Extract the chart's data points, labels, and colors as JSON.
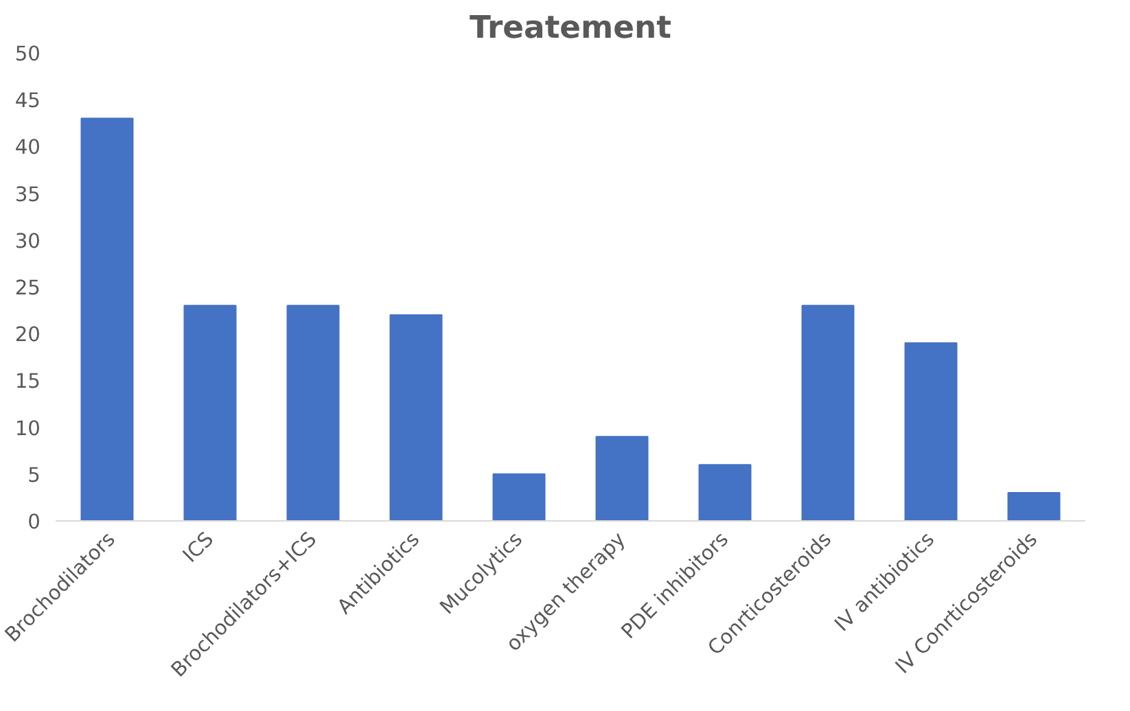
{
  "chart_data": {
    "type": "bar",
    "title": "Treatement",
    "categories": [
      "Brochodilators",
      "ICS",
      "Brochodilators+ICS",
      "Antibiotics",
      "Mucolytics",
      "oxygen therapy",
      "PDE inhibitors",
      "Conrticosteroids",
      "IV antibiotics",
      "IV Conrticosteroids"
    ],
    "values": [
      43,
      23,
      23,
      22,
      5,
      9,
      6,
      23,
      19,
      3
    ],
    "color": "#4472c4",
    "ylim": [
      0,
      50
    ],
    "yticks": [
      0,
      5,
      10,
      15,
      20,
      25,
      30,
      35,
      40,
      45,
      50
    ],
    "grid": false
  }
}
